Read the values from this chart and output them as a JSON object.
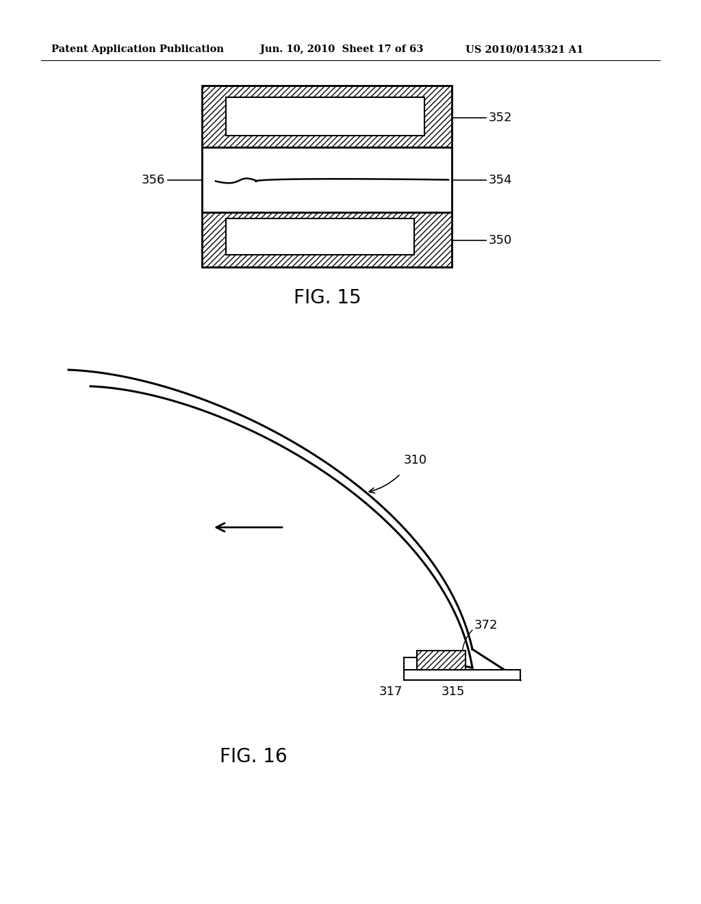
{
  "header_left": "Patent Application Publication",
  "header_mid": "Jun. 10, 2010  Sheet 17 of 63",
  "header_right": "US 2010/0145321 A1",
  "fig15_label": "FIG. 15",
  "fig16_label": "FIG. 16",
  "bg_color": "#ffffff",
  "line_color": "#000000",
  "label_352": "352",
  "label_354": "354",
  "label_350": "350",
  "label_356": "356",
  "label_310": "310",
  "label_372": "372",
  "label_315": "315",
  "label_317": "317"
}
